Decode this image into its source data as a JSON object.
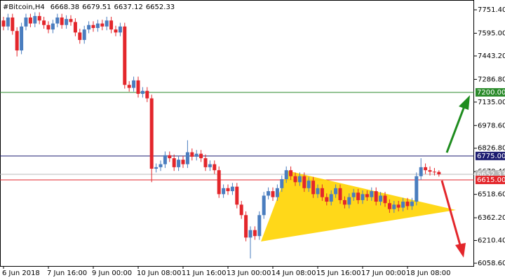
{
  "chart_data": {
    "type": "candlestick",
    "title": "#Bitcoin,H4",
    "up_color": "#4a7dbf",
    "down_color": "#e3262b",
    "ylim": [
      6040,
      7817
    ],
    "yticks": [
      {
        "value": 7751.4,
        "label": "7751.40"
      },
      {
        "value": 7595,
        "label": "7595.00"
      },
      {
        "value": 7443.2,
        "label": "7443.20"
      },
      {
        "value": 7286.8,
        "label": "7286.80"
      },
      {
        "value": 7135,
        "label": "7135.00"
      },
      {
        "value": 6978.6,
        "label": "6978.60"
      },
      {
        "value": 6826.8,
        "label": "6826.80"
      },
      {
        "value": 6670.4,
        "label": "6670.40"
      },
      {
        "value": 6518.6,
        "label": "6518.60"
      },
      {
        "value": 6362.2,
        "label": "6362.20"
      },
      {
        "value": 6210.4,
        "label": "6210.40"
      },
      {
        "value": 6058.6,
        "label": "6058.60"
      }
    ],
    "levels": [
      {
        "value": 7200,
        "label": "7200.00",
        "color": "#2a8a2a"
      },
      {
        "value": 6775,
        "label": "6775.00",
        "color": "#1c1c70"
      },
      {
        "value": 6652.33,
        "label": "6652.33",
        "color": "#b8b8b8"
      },
      {
        "value": 6615,
        "label": "6615.00",
        "color": "#e3262b"
      }
    ],
    "categories": [
      "6 Jun 2018",
      null,
      null,
      null,
      null,
      null,
      null,
      null,
      null,
      null,
      "7 Jun 16:00",
      null,
      null,
      null,
      null,
      null,
      null,
      null,
      null,
      null,
      "9 Jun 00:00",
      null,
      null,
      null,
      null,
      null,
      null,
      null,
      null,
      null,
      "10 Jun 08:00",
      null,
      null,
      null,
      null,
      null,
      null,
      null,
      null,
      null,
      "11 Jun 16:00",
      null,
      null,
      null,
      null,
      null,
      null,
      null,
      null,
      null,
      "13 Jun 00:00",
      null,
      null,
      null,
      null,
      null,
      null,
      null,
      null,
      null,
      "14 Jun 08:00",
      null,
      null,
      null,
      null,
      null,
      null,
      null,
      null,
      null,
      "15 Jun 16:00",
      null,
      null,
      null,
      null,
      null,
      null,
      null,
      null,
      null,
      "17 Jun 00:00",
      null,
      null,
      null,
      null,
      null,
      null,
      null,
      null,
      null,
      "18 Jun 08:00",
      null,
      null,
      null,
      null,
      null,
      null,
      null
    ],
    "open": [
      7680,
      7640,
      7700,
      7610,
      7480,
      7640,
      7700,
      7660,
      7710,
      7680,
      7650,
      7620,
      7660,
      7700,
      7650,
      7690,
      7670,
      7600,
      7550,
      7620,
      7650,
      7630,
      7660,
      7640,
      7680,
      7620,
      7600,
      7640,
      7250,
      7230,
      7280,
      7190,
      7210,
      7160,
      6690,
      6700,
      6720,
      6780,
      6760,
      6700,
      6750,
      6720,
      6800,
      6770,
      6790,
      6760,
      6700,
      6720,
      6680,
      6520,
      6560,
      6540,
      6570,
      6450,
      6380,
      6230,
      6280,
      6240,
      6380,
      6510,
      6540,
      6500,
      6560,
      6620,
      6680,
      6640,
      6600,
      6640,
      6560,
      6610,
      6520,
      6560,
      6500,
      6470,
      6520,
      6560,
      6480,
      6450,
      6500,
      6530,
      6480,
      6520,
      6500,
      6540,
      6470,
      6510,
      6460,
      6420,
      6450,
      6430,
      6470,
      6440,
      6470,
      6640,
      6700,
      6680,
      6670,
      6668.38
    ],
    "high": [
      7705,
      7725,
      7725,
      7635,
      7665,
      7725,
      7725,
      7735,
      7735,
      7705,
      7675,
      7685,
      7725,
      7725,
      7715,
      7715,
      7695,
      7625,
      7645,
      7675,
      7675,
      7685,
      7685,
      7705,
      7705,
      7645,
      7665,
      7665,
      7275,
      7305,
      7305,
      7235,
      7235,
      7185,
      6725,
      6745,
      6805,
      6805,
      6785,
      6775,
      6775,
      6880,
      6825,
      6815,
      6815,
      6785,
      6745,
      6745,
      6705,
      6585,
      6585,
      6595,
      6595,
      6475,
      6405,
      6305,
      6305,
      6405,
      6535,
      6565,
      6565,
      6585,
      6645,
      6705,
      6705,
      6665,
      6665,
      6665,
      6635,
      6635,
      6585,
      6585,
      6525,
      6545,
      6585,
      6585,
      6505,
      6525,
      6555,
      6555,
      6545,
      6545,
      6565,
      6565,
      6535,
      6535,
      6485,
      6475,
      6475,
      6495,
      6495,
      6495,
      6665,
      6760,
      6725,
      6705,
      6695,
      6679.51
    ],
    "low": [
      7615,
      7615,
      7585,
      7440,
      7455,
      7615,
      7635,
      7635,
      7655,
      7625,
      7595,
      7595,
      7635,
      7625,
      7625,
      7645,
      7575,
      7525,
      7525,
      7595,
      7605,
      7605,
      7615,
      7615,
      7595,
      7575,
      7575,
      7225,
      7205,
      7205,
      7165,
      7165,
      7135,
      6600,
      6665,
      6675,
      6695,
      6735,
      6675,
      6675,
      6695,
      6695,
      6745,
      6745,
      6735,
      6675,
      6675,
      6655,
      6495,
      6495,
      6515,
      6515,
      6425,
      6355,
      6205,
      6090,
      6215,
      6215,
      6355,
      6485,
      6475,
      6475,
      6535,
      6595,
      6615,
      6575,
      6575,
      6535,
      6535,
      6495,
      6495,
      6475,
      6445,
      6445,
      6495,
      6455,
      6425,
      6425,
      6475,
      6455,
      6455,
      6475,
      6475,
      6445,
      6445,
      6435,
      6395,
      6395,
      6405,
      6405,
      6415,
      6415,
      6445,
      6615,
      6655,
      6645,
      6645,
      6637.12
    ],
    "close": [
      7640,
      7700,
      7610,
      7480,
      7640,
      7700,
      7660,
      7710,
      7680,
      7650,
      7620,
      7660,
      7700,
      7650,
      7690,
      7670,
      7600,
      7550,
      7620,
      7650,
      7630,
      7660,
      7640,
      7680,
      7620,
      7600,
      7640,
      7250,
      7230,
      7280,
      7190,
      7210,
      7160,
      6690,
      6700,
      6720,
      6780,
      6760,
      6700,
      6750,
      6720,
      6800,
      6770,
      6790,
      6760,
      6700,
      6720,
      6680,
      6520,
      6560,
      6540,
      6570,
      6450,
      6380,
      6230,
      6280,
      6240,
      6380,
      6510,
      6540,
      6500,
      6560,
      6620,
      6680,
      6640,
      6600,
      6640,
      6560,
      6610,
      6520,
      6560,
      6500,
      6470,
      6520,
      6560,
      6480,
      6450,
      6500,
      6530,
      6480,
      6520,
      6500,
      6540,
      6470,
      6510,
      6460,
      6420,
      6450,
      6430,
      6470,
      6440,
      6470,
      6640,
      6700,
      6680,
      6670,
      6668.38,
      6652.33
    ]
  }
}
